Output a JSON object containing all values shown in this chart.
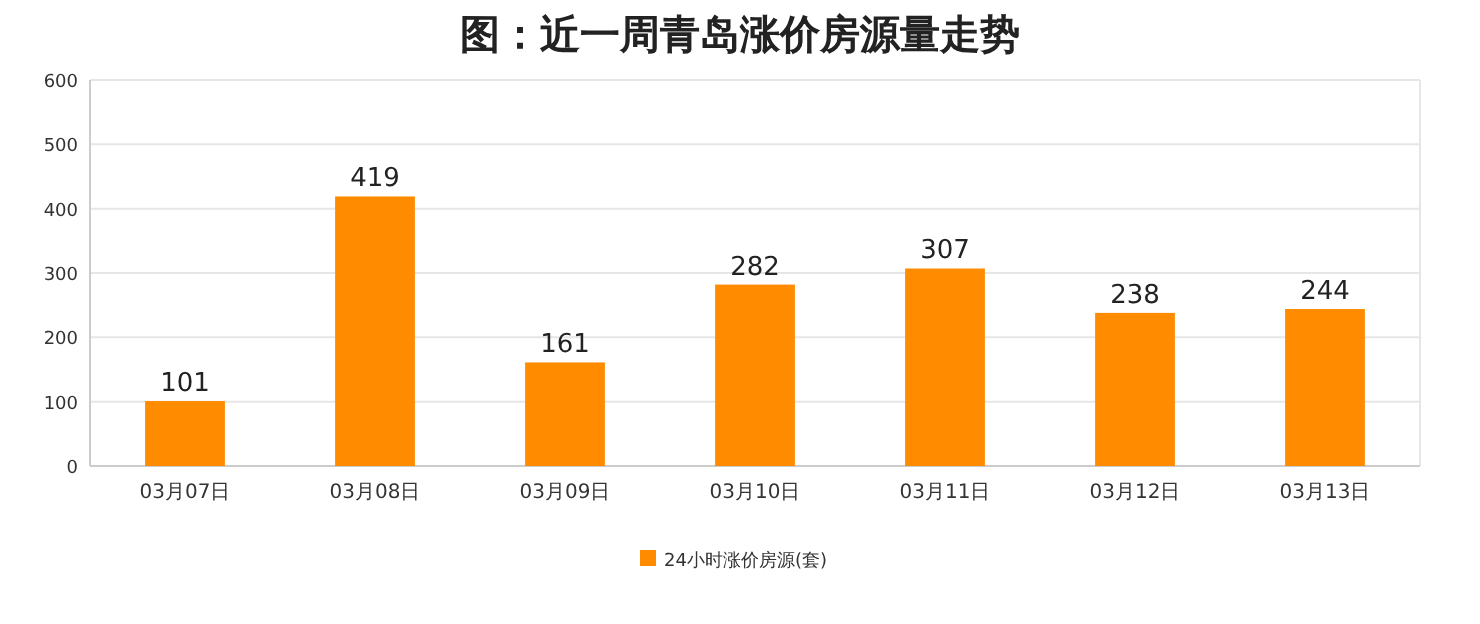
{
  "chart_data": {
    "type": "bar",
    "title": "图：近一周青岛涨价房源量走势",
    "categories": [
      "03月07日",
      "03月08日",
      "03月09日",
      "03月10日",
      "03月11日",
      "03月12日",
      "03月13日"
    ],
    "series": [
      {
        "name": "24小时涨价房源(套)",
        "color": "#ff8c00",
        "values": [
          101,
          419,
          161,
          282,
          307,
          238,
          244
        ]
      }
    ],
    "ylim": [
      0,
      600
    ],
    "yticks": [
      0,
      100,
      200,
      300,
      400,
      500,
      600
    ],
    "grid": "y",
    "legend": "bottom",
    "data_labels": true
  }
}
